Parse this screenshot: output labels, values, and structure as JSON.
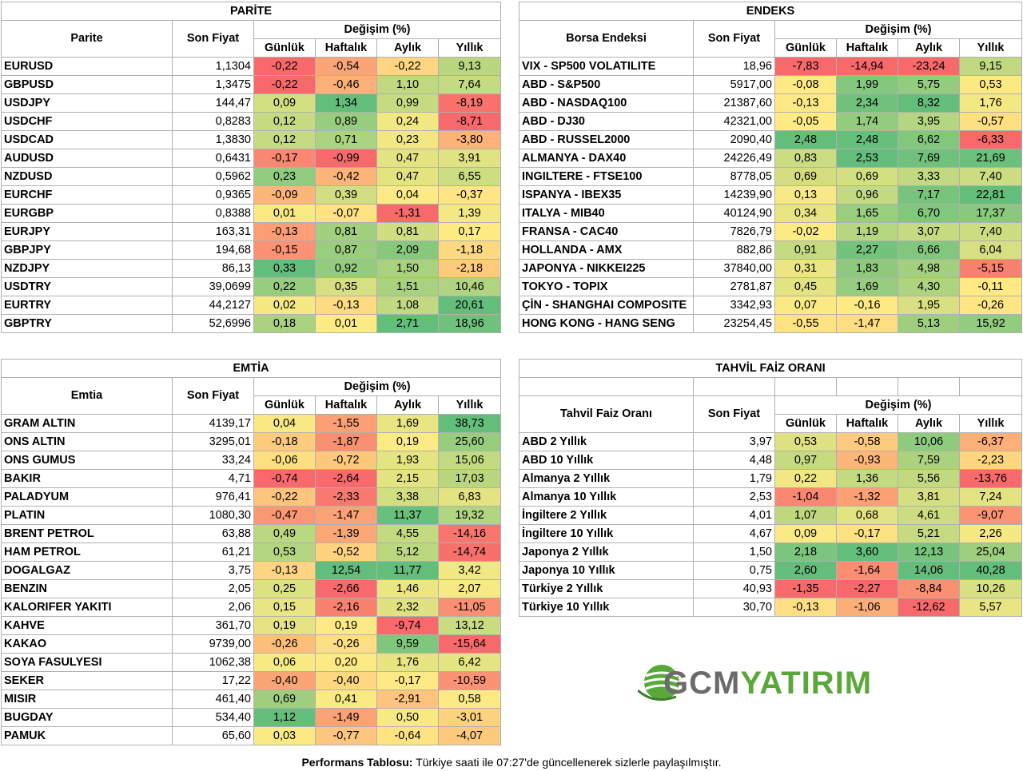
{
  "colors": {
    "scale_low": "#f8696b",
    "scale_mid": "#ffeb84",
    "scale_high": "#63be7b"
  },
  "parite": {
    "title": "PARİTE",
    "col_name": "Parite",
    "col_price": "Son Fiyat",
    "col_change": "Değişim (%)",
    "col_daily": "Günlük",
    "col_weekly": "Haftalık",
    "col_monthly": "Aylık",
    "col_yearly": "Yıllık",
    "rows": [
      {
        "name": "EURUSD",
        "price": "1,1304",
        "values": [
          "-0,22",
          "-0,54",
          "-0,22",
          "9,13"
        ]
      },
      {
        "name": "GBPUSD",
        "price": "1,3475",
        "values": [
          "-0,22",
          "-0,46",
          "1,10",
          "7,64"
        ]
      },
      {
        "name": "USDJPY",
        "price": "144,47",
        "values": [
          "0,09",
          "1,34",
          "0,99",
          "-8,19"
        ]
      },
      {
        "name": "USDCHF",
        "price": "0,8283",
        "values": [
          "0,12",
          "0,89",
          "0,24",
          "-8,71"
        ]
      },
      {
        "name": "USDCAD",
        "price": "1,3830",
        "values": [
          "0,12",
          "0,71",
          "0,23",
          "-3,80"
        ]
      },
      {
        "name": "AUDUSD",
        "price": "0,6431",
        "values": [
          "-0,17",
          "-0,99",
          "0,47",
          "3,91"
        ]
      },
      {
        "name": "NZDUSD",
        "price": "0,5962",
        "values": [
          "0,23",
          "-0,42",
          "0,47",
          "6,55"
        ]
      },
      {
        "name": "EURCHF",
        "price": "0,9365",
        "values": [
          "-0,09",
          "0,39",
          "0,04",
          "-0,37"
        ]
      },
      {
        "name": "EURGBP",
        "price": "0,8388",
        "values": [
          "0,01",
          "-0,07",
          "-1,31",
          "1,39"
        ]
      },
      {
        "name": "EURJPY",
        "price": "163,31",
        "values": [
          "-0,13",
          "0,81",
          "0,81",
          "0,17"
        ]
      },
      {
        "name": "GBPJPY",
        "price": "194,68",
        "values": [
          "-0,15",
          "0,87",
          "2,09",
          "-1,18"
        ]
      },
      {
        "name": "NZDJPY",
        "price": "86,13",
        "values": [
          "0,33",
          "0,92",
          "1,50",
          "-2,18"
        ]
      },
      {
        "name": "USDTRY",
        "price": "39,0699",
        "values": [
          "0,22",
          "0,35",
          "1,51",
          "10,46"
        ]
      },
      {
        "name": "EURTRY",
        "price": "44,2127",
        "values": [
          "0,02",
          "-0,13",
          "1,08",
          "20,61"
        ]
      },
      {
        "name": "GBPTRY",
        "price": "52,6996",
        "values": [
          "0,18",
          "0,01",
          "2,71",
          "18,96"
        ]
      }
    ]
  },
  "endeks": {
    "title": "ENDEKS",
    "col_name": "Borsa Endeksi",
    "col_price": "Son Fiyat",
    "col_change": "Değişim (%)",
    "col_daily": "Günlük",
    "col_weekly": "Haftalık",
    "col_monthly": "Aylık",
    "col_yearly": "Yıllık",
    "rows": [
      {
        "name": "VIX  - SP500 VOLATILITE",
        "price": "18,96",
        "values": [
          "-7,83",
          "-14,94",
          "-23,24",
          "9,15"
        ]
      },
      {
        "name": "ABD - S&P500",
        "price": "5917,00",
        "values": [
          "-0,08",
          "1,99",
          "5,75",
          "0,53"
        ]
      },
      {
        "name": "ABD - NASDAQ100",
        "price": "21387,60",
        "values": [
          "-0,13",
          "2,34",
          "8,32",
          "1,76"
        ]
      },
      {
        "name": "ABD - DJ30",
        "price": "42321,00",
        "values": [
          "-0,05",
          "1,74",
          "3,95",
          "-0,57"
        ]
      },
      {
        "name": "ABD - RUSSEL2000",
        "price": "2090,40",
        "values": [
          "2,48",
          "2,48",
          "6,62",
          "-6,33"
        ]
      },
      {
        "name": "ALMANYA - DAX40",
        "price": "24226,49",
        "values": [
          "0,83",
          "2,53",
          "7,69",
          "21,69"
        ]
      },
      {
        "name": "INGILTERE - FTSE100",
        "price": "8778,05",
        "values": [
          "0,69",
          "0,69",
          "3,33",
          "7,40"
        ]
      },
      {
        "name": "ISPANYA - IBEX35",
        "price": "14239,90",
        "values": [
          "0,13",
          "0,96",
          "7,17",
          "22,81"
        ]
      },
      {
        "name": "ITALYA - MIB40",
        "price": "40124,90",
        "values": [
          "0,34",
          "1,65",
          "6,70",
          "17,37"
        ]
      },
      {
        "name": "FRANSA - CAC40",
        "price": "7826,79",
        "values": [
          "-0,02",
          "1,19",
          "3,07",
          "7,40"
        ]
      },
      {
        "name": "HOLLANDA - AMX",
        "price": "882,86",
        "values": [
          "0,91",
          "2,27",
          "6,66",
          "6,04"
        ]
      },
      {
        "name": "JAPONYA - NIKKEI225",
        "price": "37840,00",
        "values": [
          "0,31",
          "1,83",
          "4,98",
          "-5,15"
        ]
      },
      {
        "name": "TOKYO - TOPIX",
        "price": "2781,87",
        "values": [
          "0,45",
          "1,69",
          "4,30",
          "-0,11"
        ]
      },
      {
        "name": "ÇİN - SHANGHAI COMPOSITE",
        "price": "3342,93",
        "values": [
          "0,07",
          "-0,16",
          "1,95",
          "-0,26"
        ]
      },
      {
        "name": "HONG KONG - HANG SENG",
        "price": "23254,45",
        "values": [
          "-0,55",
          "-1,47",
          "5,13",
          "15,92"
        ]
      }
    ]
  },
  "emtia": {
    "title": "EMTİA",
    "col_name": "Emtia",
    "col_price": "Son Fiyat",
    "col_change": "Değişim (%)",
    "col_daily": "Günlük",
    "col_weekly": "Haftalık",
    "col_monthly": "Aylık",
    "col_yearly": "Yıllık",
    "rows": [
      {
        "name": "GRAM ALTIN",
        "price": "4139,17",
        "values": [
          "0,04",
          "-1,55",
          "1,69",
          "38,73"
        ]
      },
      {
        "name": "ONS ALTIN",
        "price": "3295,01",
        "values": [
          "-0,18",
          "-1,87",
          "0,19",
          "25,60"
        ]
      },
      {
        "name": "ONS GUMUS",
        "price": "33,24",
        "values": [
          "-0,06",
          "-0,72",
          "1,93",
          "15,06"
        ]
      },
      {
        "name": "BAKIR",
        "price": "4,71",
        "values": [
          "-0,74",
          "-2,64",
          "2,15",
          "17,03"
        ]
      },
      {
        "name": "PALADYUM",
        "price": "976,41",
        "values": [
          "-0,22",
          "-2,33",
          "3,38",
          "6,83"
        ]
      },
      {
        "name": "PLATIN",
        "price": "1080,30",
        "values": [
          "-0,47",
          "-1,47",
          "11,37",
          "19,32"
        ]
      },
      {
        "name": "BRENT PETROL",
        "price": "63,88",
        "values": [
          "0,49",
          "-1,39",
          "4,55",
          "-14,16"
        ]
      },
      {
        "name": "HAM PETROL",
        "price": "61,21",
        "values": [
          "0,53",
          "-0,52",
          "5,12",
          "-14,74"
        ]
      },
      {
        "name": "DOGALGAZ",
        "price": "3,75",
        "values": [
          "-0,13",
          "12,54",
          "11,77",
          "3,42"
        ]
      },
      {
        "name": "BENZIN",
        "price": "2,05",
        "values": [
          "0,25",
          "-2,66",
          "1,46",
          "2,07"
        ]
      },
      {
        "name": "KALORIFER YAKITI",
        "price": "2,06",
        "values": [
          "0,15",
          "-2,16",
          "2,32",
          "-11,05"
        ]
      },
      {
        "name": "KAHVE",
        "price": "361,70",
        "values": [
          "0,19",
          "0,19",
          "-9,74",
          "13,12"
        ]
      },
      {
        "name": "KAKAO",
        "price": "9739,00",
        "values": [
          "-0,26",
          "-0,26",
          "9,59",
          "-15,64"
        ]
      },
      {
        "name": "SOYA FASULYESI",
        "price": "1062,38",
        "values": [
          "0,06",
          "0,20",
          "1,76",
          "6,42"
        ]
      },
      {
        "name": "SEKER",
        "price": "17,22",
        "values": [
          "-0,40",
          "-0,40",
          "-0,17",
          "-10,59"
        ]
      },
      {
        "name": "MISIR",
        "price": "461,40",
        "values": [
          "0,69",
          "0,41",
          "-2,91",
          "0,58"
        ]
      },
      {
        "name": "BUGDAY",
        "price": "534,40",
        "values": [
          "1,12",
          "-1,49",
          "0,50",
          "-3,01"
        ]
      },
      {
        "name": "PAMUK",
        "price": "65,60",
        "values": [
          "0,03",
          "-0,77",
          "-0,64",
          "-4,07"
        ]
      }
    ]
  },
  "tahvil": {
    "title": "TAHVİL FAİZ ORANI",
    "col_name": "Tahvil Faiz Oranı",
    "col_price": "Son Fiyat",
    "col_change": "Değişim (%)",
    "col_daily": "Günlük",
    "col_weekly": "Haftalık",
    "col_monthly": "Aylık",
    "col_yearly": "Yıllık",
    "rows": [
      {
        "name": "ABD 2 Yıllık",
        "price": "3,97",
        "values": [
          "0,53",
          "-0,58",
          "10,06",
          "-6,37"
        ]
      },
      {
        "name": "ABD 10 Yıllık",
        "price": "4,48",
        "values": [
          "0,97",
          "-0,93",
          "7,59",
          "-2,23"
        ]
      },
      {
        "name": "Almanya 2 Yıllık",
        "price": "1,79",
        "values": [
          "0,22",
          "1,36",
          "5,56",
          "-13,76"
        ]
      },
      {
        "name": "Almanya 10 Yıllık",
        "price": "2,53",
        "values": [
          "-1,04",
          "-1,32",
          "3,81",
          "7,24"
        ]
      },
      {
        "name": "İngiltere 2 Yıllık",
        "price": "4,01",
        "values": [
          "1,07",
          "0,68",
          "4,61",
          "-9,07"
        ]
      },
      {
        "name": "İngiltere 10 Yıllık",
        "price": "4,67",
        "values": [
          "0,09",
          "-0,17",
          "5,21",
          "2,26"
        ]
      },
      {
        "name": "Japonya 2 Yıllık",
        "price": "1,50",
        "values": [
          "2,18",
          "3,60",
          "12,13",
          "25,04"
        ]
      },
      {
        "name": "Japonya 10 Yıllık",
        "price": "0,75",
        "values": [
          "2,60",
          "-1,64",
          "14,06",
          "40,28"
        ]
      },
      {
        "name": "Türkiye 2 Yıllık",
        "price": "40,93",
        "values": [
          "-1,35",
          "-2,27",
          "-8,84",
          "10,26"
        ]
      },
      {
        "name": "Türkiye 10 Yıllık",
        "price": "30,70",
        "values": [
          "-0,13",
          "-1,06",
          "-12,62",
          "5,57"
        ]
      }
    ]
  },
  "footer": {
    "bold": "Performans Tablosu:",
    "text": " Türkiye saati ile 07:27'de güncellenerek sizlerle paylaşılmıştır."
  },
  "logo": {
    "icon": "globe-swoosh-icon",
    "part1": "GCM",
    "part2": "YATIRIM"
  }
}
